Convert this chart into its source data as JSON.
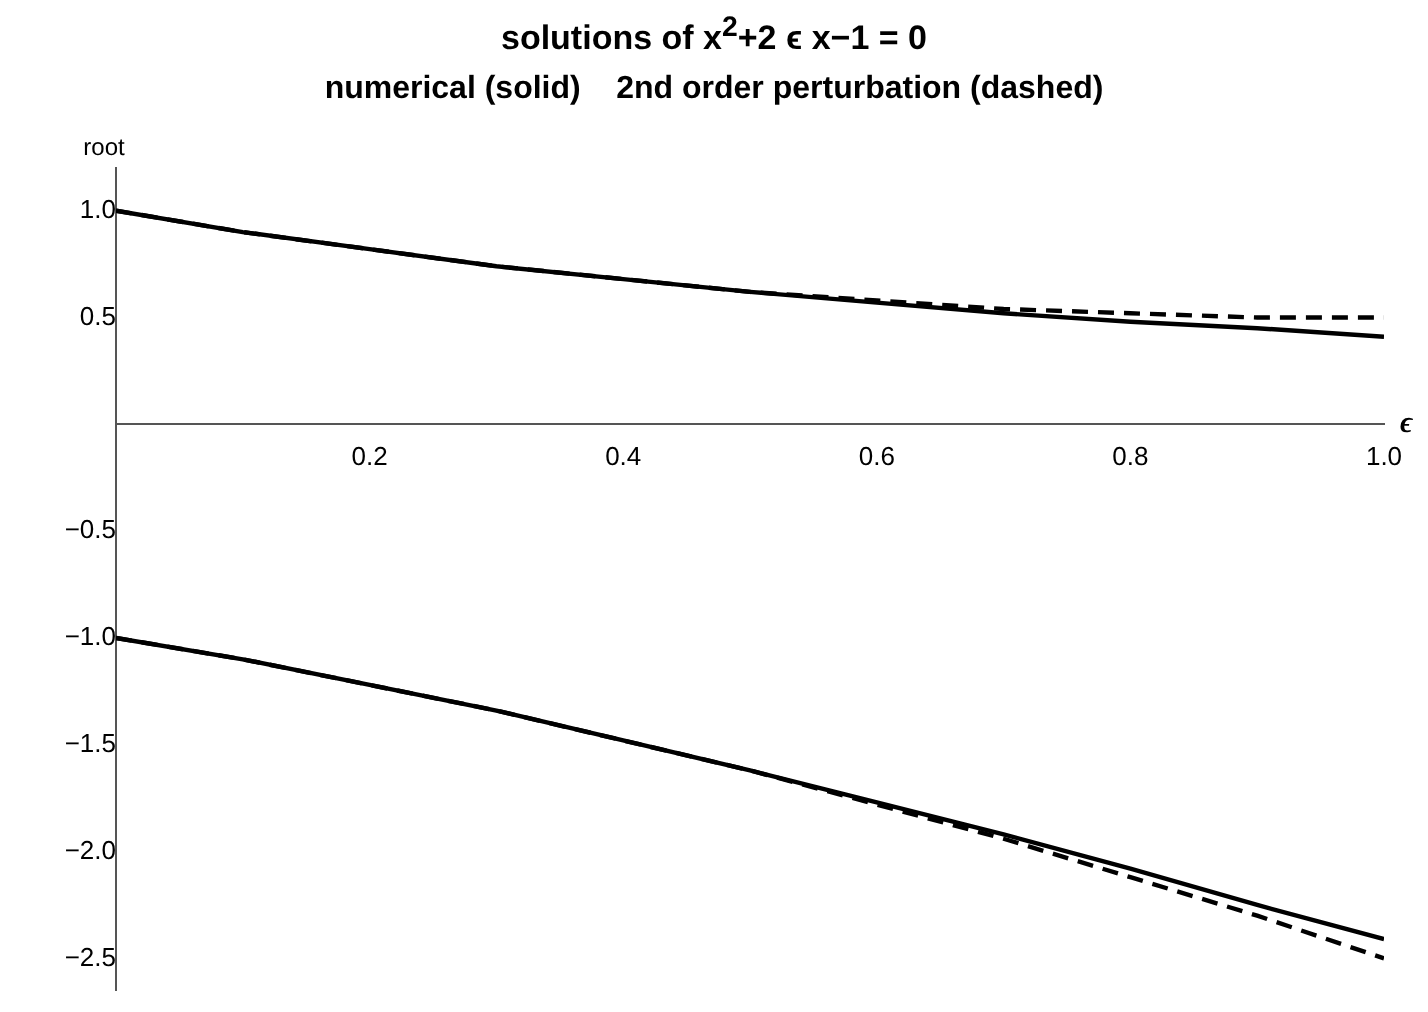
{
  "chart_data": {
    "type": "line",
    "title": "solutions of x$^{2}$+2 ϵ x−1 = 0",
    "subtitle": "numerical (solid)    2nd order perturbation (dashed)",
    "xlabel": "ϵ",
    "ylabel": "root",
    "xlim": [
      0,
      1
    ],
    "ylim": [
      -2.65,
      1.2
    ],
    "xticks": [
      0.2,
      0.4,
      0.6,
      0.8,
      {
        "value": 1,
        "label": "1.0"
      }
    ],
    "yticks": [
      {
        "value": -2.5,
        "label": "−2.5"
      },
      {
        "value": -2,
        "label": "−2.0"
      },
      {
        "value": -1.5,
        "label": "−1.5"
      },
      {
        "value": -1,
        "label": "−1.0"
      },
      {
        "value": -0.5,
        "label": "−0.5"
      },
      {
        "value": 0.5,
        "label": "0.5"
      },
      {
        "value": 1,
        "label": "1.0"
      }
    ],
    "grid": false,
    "legend": false,
    "marker": "none",
    "series": [
      {
        "color": "#000000",
        "line_style": "solid",
        "x": [
          0,
          0.1,
          0.2,
          0.3,
          0.4,
          0.5,
          0.6,
          0.7,
          0.8,
          0.9,
          1
        ],
        "values": [
          1,
          0.9,
          0.82,
          0.74,
          0.68,
          0.62,
          0.57,
          0.52,
          0.48,
          0.45,
          0.41
        ]
      },
      {
        "color": "#000000",
        "line_style": "solid",
        "x": [
          0,
          0.1,
          0.2,
          0.3,
          0.4,
          0.5,
          0.6,
          0.7,
          0.8,
          0.9,
          1
        ],
        "values": [
          -1,
          -1.1,
          -1.22,
          -1.34,
          -1.48,
          -1.62,
          -1.77,
          -1.92,
          -2.08,
          -2.25,
          -2.41
        ]
      },
      {
        "color": "#000000",
        "line_style": "dashed",
        "x": [
          0,
          0.1,
          0.2,
          0.3,
          0.4,
          0.5,
          0.6,
          0.7,
          0.8,
          0.9,
          1
        ],
        "values": [
          1,
          0.9,
          0.82,
          0.74,
          0.68,
          0.62,
          0.58,
          0.54,
          0.52,
          0.5,
          0.5
        ]
      },
      {
        "color": "#000000",
        "line_style": "dashed",
        "x": [
          0,
          0.1,
          0.2,
          0.3,
          0.4,
          0.5,
          0.6,
          0.7,
          0.8,
          0.9,
          1
        ],
        "values": [
          -1,
          -1.1,
          -1.22,
          -1.34,
          -1.48,
          -1.62,
          -1.78,
          -1.94,
          -2.12,
          -2.3,
          -2.5
        ]
      }
    ]
  }
}
